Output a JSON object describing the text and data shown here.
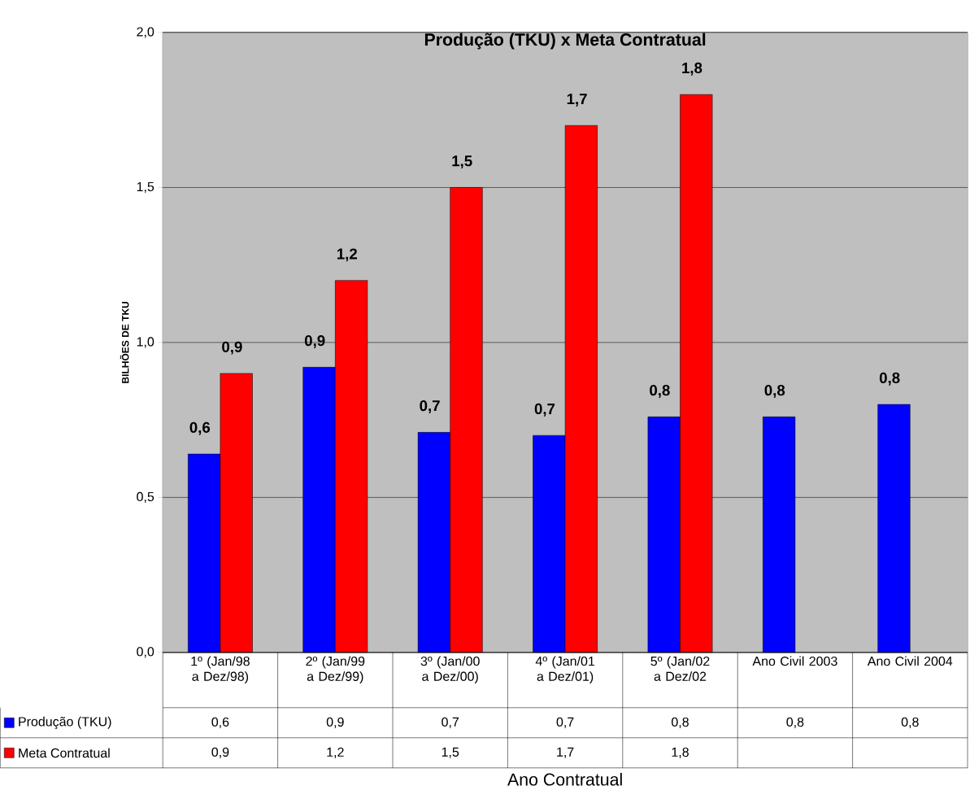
{
  "chart_data": {
    "type": "bar",
    "title": "Produção (TKU) x Meta Contratual",
    "annotations": [
      "Ano Contratual"
    ],
    "ylabel": "BILHÕES DE TKU",
    "categories": [
      "1º (Jan/98 a Dez/98)",
      "2º (Jan/99 a Dez/99)",
      "3º (Jan/00 a Dez/00)",
      "4º (Jan/01 a Dez/01)",
      "5º (Jan/02 a Dez/02",
      "Ano Civil 2003",
      "Ano Civil 2004"
    ],
    "series": [
      {
        "name": "Produção (TKU)",
        "color": "#0000ff",
        "values": [
          0.64,
          0.92,
          0.71,
          0.7,
          0.76,
          0.76,
          0.8
        ],
        "value_labels": [
          "0,6",
          "0,9",
          "0,7",
          "0,7",
          "0,8",
          "0,8",
          "0,8"
        ]
      },
      {
        "name": "Meta Contratual",
        "color": "#ff0000",
        "values": [
          0.9,
          1.2,
          1.5,
          1.7,
          1.8,
          null,
          null
        ],
        "value_labels": [
          "0,9",
          "1,2",
          "1,5",
          "1,7",
          "1,8",
          null,
          null
        ]
      }
    ],
    "ylim": [
      0,
      2.0
    ],
    "yticks": [
      {
        "value": 0,
        "label": "0,0"
      },
      {
        "value": 0.5,
        "label": "0,5"
      },
      {
        "value": 1.0,
        "label": "1,0"
      },
      {
        "value": 1.5,
        "label": "1,5"
      },
      {
        "value": 2.0,
        "label": "2,0"
      }
    ],
    "grid": "y",
    "legend": "bottom"
  }
}
